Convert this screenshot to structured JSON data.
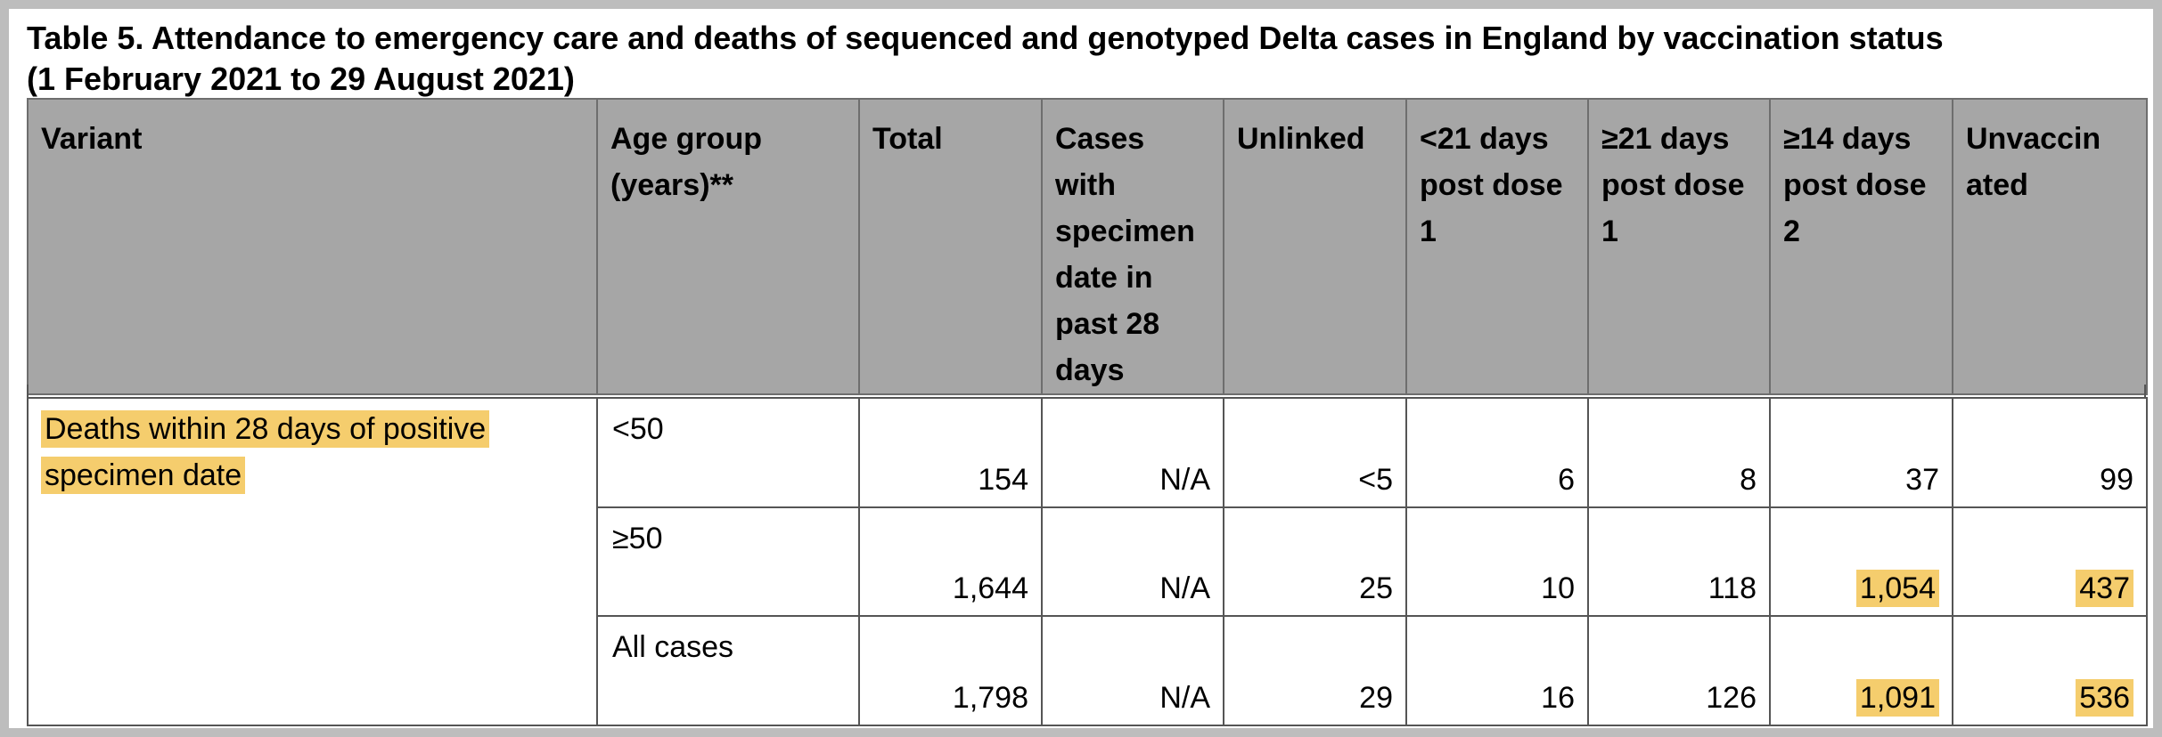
{
  "title": {
    "line1": "Table 5. Attendance to emergency care and deaths of sequenced and genotyped Delta cases in England by vaccination status",
    "line2": "(1 February 2021 to 29 August 2021)"
  },
  "header": {
    "variant": "Variant",
    "age_group": "Age group (years)**",
    "total": "Total",
    "cases_past_28": "Cases with specimen date in past 28 days",
    "unlinked": "Unlinked",
    "lt21_dose1": "<21 days post dose 1",
    "ge21_dose1": "≥21 days post dose 1",
    "ge14_dose2": "≥14 days post dose 2",
    "unvaccinated": "Unvaccin ated"
  },
  "body": {
    "variant_label": "Deaths within 28 days of positive specimen date",
    "rows": [
      {
        "age": "<50",
        "total": "154",
        "past28": "N/A",
        "unlinked": "<5",
        "lt21": "6",
        "ge21": "8",
        "ge14": "37",
        "unvacc": "99"
      },
      {
        "age": "≥50",
        "total": "1,644",
        "past28": "N/A",
        "unlinked": "25",
        "lt21": "10",
        "ge21": "118",
        "ge14": "1,054",
        "unvacc": "437"
      },
      {
        "age": "All cases",
        "total": "1,798",
        "past28": "N/A",
        "unlinked": "29",
        "lt21": "16",
        "ge21": "126",
        "ge14": "1,091",
        "unvacc": "536"
      }
    ]
  },
  "colors": {
    "highlight": "#f5cd6d",
    "header_bg": "#a6a6a6",
    "frame_bg": "#bdbdbd"
  }
}
